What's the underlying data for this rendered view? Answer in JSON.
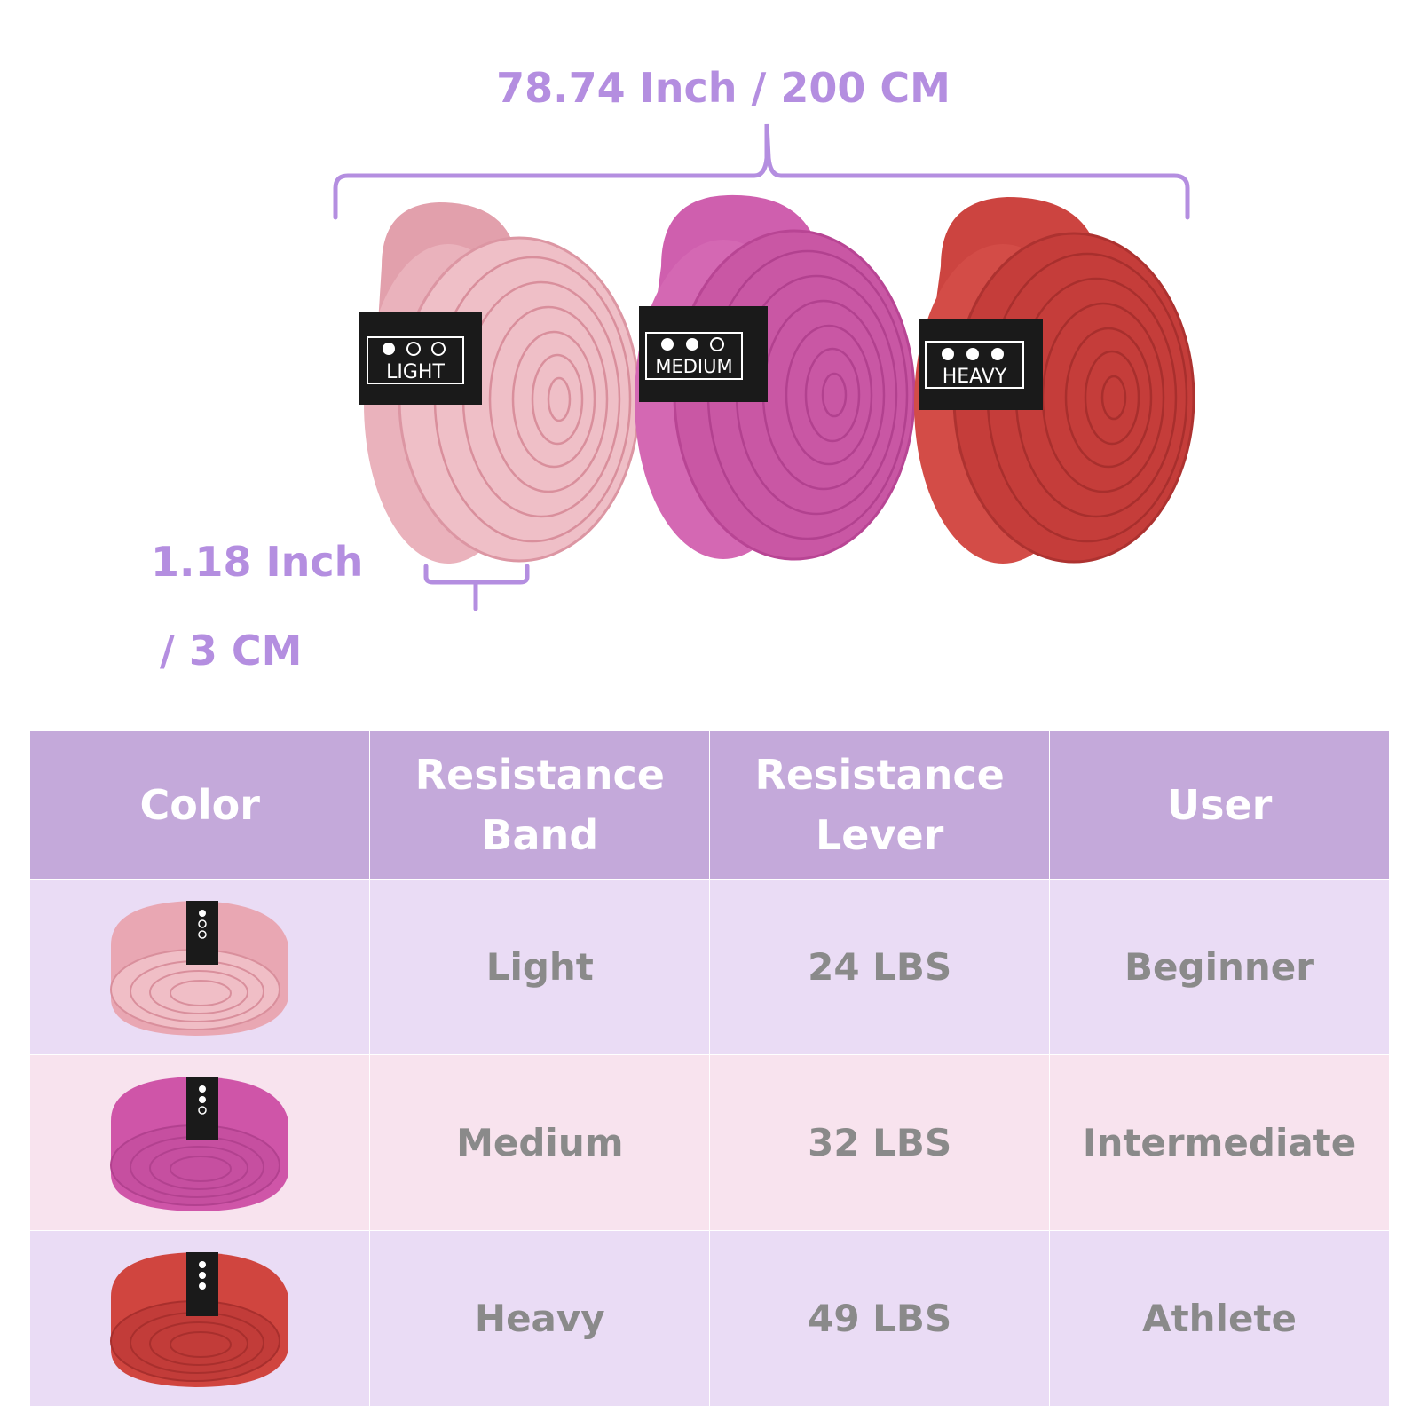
{
  "dimensions": {
    "length_label": "78.74 Inch / 200 CM",
    "width_label_line1": "1.18 Inch",
    "width_label_line2": "/ 3 CM"
  },
  "bands": [
    {
      "tag": "LIGHT",
      "dots_filled": 1,
      "color": "#e9a7b3"
    },
    {
      "tag": "MEDIUM",
      "dots_filled": 2,
      "color": "#cf55a8"
    },
    {
      "tag": "HEAVY",
      "dots_filled": 3,
      "color": "#d0453f"
    }
  ],
  "table": {
    "headers": {
      "color": "Color",
      "band": "Resistance Band",
      "lever": "Resistance Lever",
      "user": "User"
    },
    "rows": [
      {
        "band": "Light",
        "lever": "24 LBS",
        "user": "Beginner"
      },
      {
        "band": "Medium",
        "lever": "32 LBS",
        "user": "Intermediate"
      },
      {
        "band": "Heavy",
        "lever": "49 LBS",
        "user": "Athlete"
      }
    ]
  },
  "colors": {
    "accent_purple": "#b48ee0",
    "header_bg": "#c4a9da",
    "row_lavender": "#eadcf5",
    "row_pink": "#f8e3ee",
    "cell_text": "#8a8a8a"
  }
}
